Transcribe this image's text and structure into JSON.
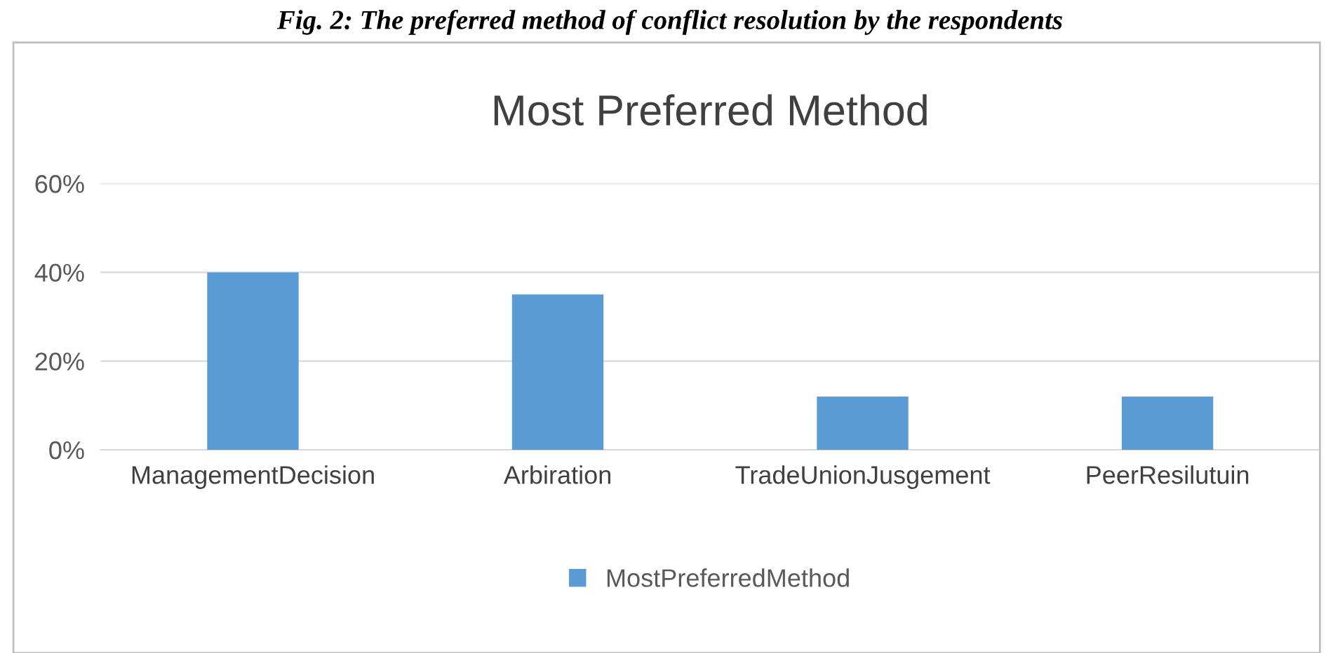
{
  "chart_data": {
    "type": "bar",
    "title": "Most Preferred Method",
    "annotations": [
      "Fig. 2: The preferred method of conflict resolution by the respondents"
    ],
    "categories": [
      "ManagementDecision",
      "Arbiration",
      "TradeUnionJusgement",
      "PeerResilutuin"
    ],
    "series": [
      {
        "name": "MostPreferredMethod",
        "color": "#5b9bd5",
        "values": [
          40,
          35,
          12,
          12
        ]
      }
    ],
    "ylim": [
      0,
      60
    ],
    "yticks": [
      {
        "value": 0,
        "label": "0%"
      },
      {
        "value": 20,
        "label": "20%"
      },
      {
        "value": 40,
        "label": "40%"
      },
      {
        "value": 60,
        "label": "60%"
      }
    ],
    "grid": "y",
    "legend": "bottom"
  }
}
